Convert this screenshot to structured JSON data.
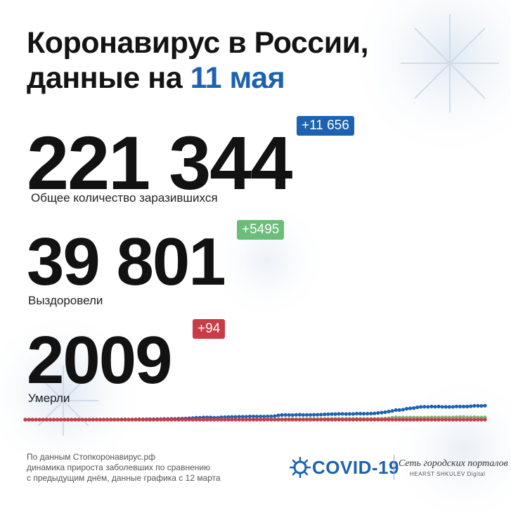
{
  "header": {
    "title_line1": "Коронавирус в России,",
    "title_line2_prefix": "данные на ",
    "title_line2_date": "11 мая"
  },
  "stats": {
    "total": {
      "value": "221 344",
      "label": "Общее количество заразившихся",
      "delta": "+11 656",
      "color": "#1c62b0"
    },
    "recovered": {
      "value": "39 801",
      "label": "Выздоровели",
      "delta": "+5495",
      "color": "#6bbd7a"
    },
    "deaths": {
      "value": "2009",
      "label": "Умерли",
      "delta": "+94",
      "color": "#c93b46"
    }
  },
  "footnote": {
    "line1": "По данным Стопкоронавирус.рф",
    "line2": "динамика прироста заболевших по сравнению",
    "line3": "с предыдущим днём, данные графика с 12 марта"
  },
  "branding": {
    "covid_logo": "COVID-19",
    "covid_icon": "virus-icon",
    "network_name": "Сеть городских порталов",
    "network_sub": "HEARST SHKULEV Digital"
  },
  "chart_data": {
    "type": "line",
    "x_start": "12 марта",
    "x_end": "11 мая",
    "series": [
      {
        "color": "#1c62b0",
        "values": [
          0,
          0,
          0,
          0,
          0,
          0,
          0,
          0,
          0,
          0,
          0,
          0,
          0,
          0,
          0,
          0,
          0,
          0,
          1,
          1,
          2,
          3,
          3,
          4,
          4,
          5,
          6,
          8,
          11,
          8,
          8,
          11,
          12,
          13,
          15,
          15,
          17,
          20,
          21,
          24,
          25,
          28,
          30,
          34,
          38,
          43,
          50,
          57,
          69,
          67,
          81,
          80,
          81,
          69,
          70,
          86,
          87,
          94,
          98,
          98,
          102,
          103,
          105,
          112,
          113,
          109,
          113,
          111,
          114,
          114,
          127,
          150,
          166,
          167,
          166,
          163,
          170,
          175,
          169,
          171,
          171,
          173,
          175,
          180,
          187,
          192,
          199,
          198,
          202,
          205,
          201,
          204,
          203,
          212,
          214,
          211,
          213,
          215,
          224,
          237,
          250,
          265,
          289,
          311,
          340,
          340,
          355,
          389,
          402,
          414,
          439,
          453,
          459,
          457,
          465,
          459,
          465,
          457,
          454,
          453,
          456,
          469,
          465,
          466,
          467,
          477,
          492,
          492,
          488,
          498
        ]
      },
      {
        "color": "#6bbd7a",
        "values": [
          0,
          0,
          0,
          0,
          0,
          0,
          0,
          0,
          0,
          0,
          0,
          0,
          0,
          0,
          0,
          0,
          0,
          0,
          0,
          0,
          0,
          0,
          0,
          0,
          0,
          0,
          0,
          0,
          0,
          0,
          0,
          0,
          0,
          0,
          0,
          0,
          0,
          0,
          0,
          0,
          0,
          0,
          0,
          0,
          0,
          0,
          0,
          0,
          0,
          0,
          1,
          1,
          1,
          1,
          2,
          2,
          2,
          3,
          3,
          3,
          5,
          6,
          7,
          8,
          9,
          10,
          11,
          12,
          14,
          14,
          15,
          16,
          16,
          18,
          20,
          19,
          16,
          16,
          21,
          22,
          25,
          22,
          22,
          24,
          25,
          24,
          27,
          27,
          31,
          31,
          30,
          31,
          30,
          32,
          33,
          29,
          31,
          33,
          29,
          32,
          36,
          42,
          50,
          73,
          81,
          72,
          73,
          73,
          75,
          75,
          70,
          69,
          72,
          74,
          77,
          78,
          76,
          78,
          77,
          74,
          80,
          86,
          89,
          90,
          80,
          83,
          84,
          81,
          76,
          77
        ]
      },
      {
        "color": "#c93b46",
        "values": [
          0,
          0,
          0,
          0,
          0,
          0,
          0,
          0,
          0,
          0,
          0,
          0,
          0,
          0,
          0,
          0,
          0,
          0,
          0,
          0,
          0,
          0,
          0,
          0,
          0,
          0,
          0,
          0,
          0,
          0,
          0,
          0,
          0,
          0,
          0,
          0,
          0,
          0,
          0,
          0,
          0,
          0,
          0,
          0,
          0,
          0,
          0,
          0,
          0,
          0,
          0,
          0,
          0,
          0,
          0,
          0,
          0,
          0,
          0,
          0,
          0,
          0,
          0,
          0,
          0,
          0,
          0,
          0,
          0,
          0,
          0,
          0,
          0,
          0,
          0,
          0,
          0,
          0,
          0,
          0,
          0,
          0,
          0,
          0,
          0,
          0,
          0,
          0,
          0,
          0,
          0,
          0,
          0,
          0,
          0,
          0,
          0,
          0,
          0,
          0,
          0,
          0,
          0,
          0,
          0,
          0,
          0,
          0,
          0,
          0,
          0,
          0,
          0,
          0,
          0,
          0,
          0,
          0,
          0,
          0,
          0,
          0,
          0,
          0,
          0,
          0,
          0,
          0,
          0,
          0
        ]
      }
    ],
    "ylim": [
      0,
      12000
    ],
    "grid": false,
    "legend": "none"
  }
}
